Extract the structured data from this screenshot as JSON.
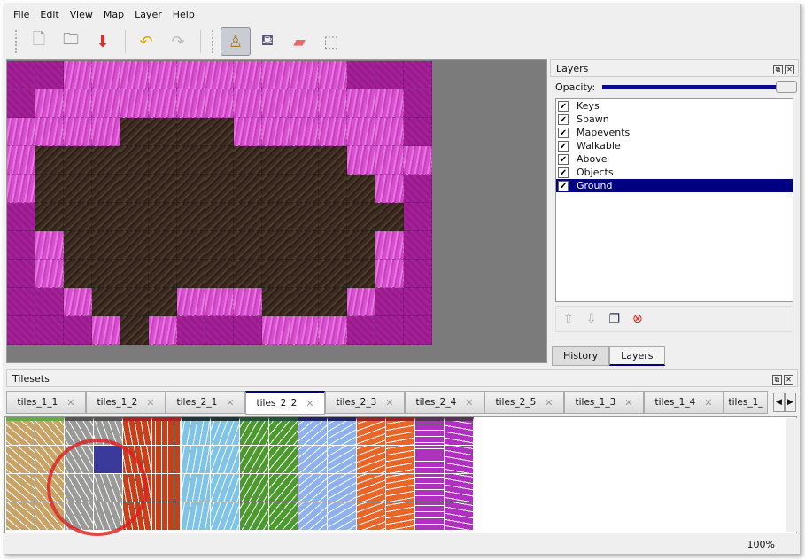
{
  "menu": [
    "File",
    "Edit",
    "View",
    "Map",
    "Layer",
    "Help"
  ],
  "toolbar": [
    {
      "icon": "new-icon",
      "g": "🗋"
    },
    {
      "icon": "open-icon",
      "g": "🗀"
    },
    {
      "icon": "save-icon",
      "g": "⬇"
    },
    {
      "icon": "undo-icon",
      "g": "↶"
    },
    {
      "icon": "redo-icon",
      "g": "↷"
    },
    {
      "icon": "stamp-brush-icon",
      "g": "♙",
      "active": true
    },
    {
      "icon": "bucket-fill-icon",
      "g": "⛾"
    },
    {
      "icon": "eraser-icon",
      "g": "▰"
    },
    {
      "icon": "rect-select-icon",
      "g": "⬚"
    }
  ],
  "map": {
    "tiles": [
      "DDPPPPPPPPPPDDD",
      "DPPPPPPPPPPPPPD",
      "PPPPBBBBPPPPPPD",
      "PBBBBBBBBBBBPPP",
      "PBBBBBBBBBBBBPD",
      "DBBBBBBBBBBBBBD",
      "DPBBBBBBBBBBBPD",
      "DPBBBBBBBBBBBPD",
      "DDPBBBPPPBBBPDD",
      "DDDPBPDDDPPPDDD"
    ]
  },
  "layers": {
    "title": "Layers",
    "opacity_label": "Opacity:",
    "opacity": 1.0,
    "items": [
      "Keys",
      "Spawn",
      "Mapevents",
      "Walkable",
      "Above",
      "Objects",
      "Ground"
    ],
    "selected": "Ground",
    "buttons": [
      "move-up-icon",
      "move-down-icon",
      "duplicate-icon",
      "delete-icon"
    ]
  },
  "dock_tabs": [
    "History",
    "Layers"
  ],
  "tilesets": {
    "title": "Tilesets",
    "tabs": [
      "tiles_1_1",
      "tiles_1_2",
      "tiles_2_1",
      "tiles_2_2",
      "tiles_2_3",
      "tiles_2_4",
      "tiles_2_5",
      "tiles_1_3",
      "tiles_1_4",
      "tiles_1_"
    ],
    "active": "tiles_2_2",
    "colors": [
      "#c9a266",
      "#9a9a98",
      "#c8401a",
      "#7fc4e6",
      "#4c9a2e",
      "#8fb2ee",
      "#e8662a",
      "#b030c0"
    ],
    "selected_tile_color": "#3a3a9a"
  },
  "status": {
    "zoom": "100%"
  }
}
